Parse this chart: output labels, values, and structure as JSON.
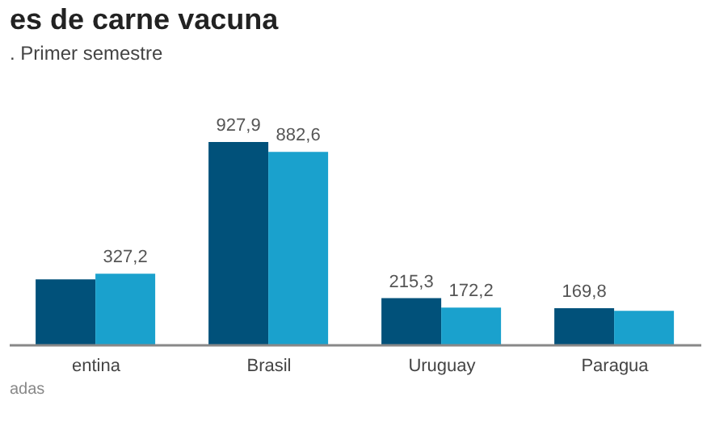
{
  "chart_data": {
    "type": "bar",
    "title": "es de carne vacuna",
    "subtitle": ". Primer semestre",
    "categories": [
      "entina",
      "Brasil",
      "Uruguay",
      "Paragua"
    ],
    "series": [
      {
        "color": "#01517a",
        "values": [
          301,
          927.9,
          215.3,
          169.8
        ],
        "value_labels": [
          null,
          "927,9",
          "215,3",
          "169,8"
        ]
      },
      {
        "color": "#1aa1cd",
        "values": [
          327.2,
          882.6,
          172.2,
          157
        ],
        "value_labels": [
          "327,2",
          "882,6",
          "172,2",
          null
        ]
      }
    ],
    "tick_labels": "x",
    "annotations": [
      "adas"
    ]
  }
}
